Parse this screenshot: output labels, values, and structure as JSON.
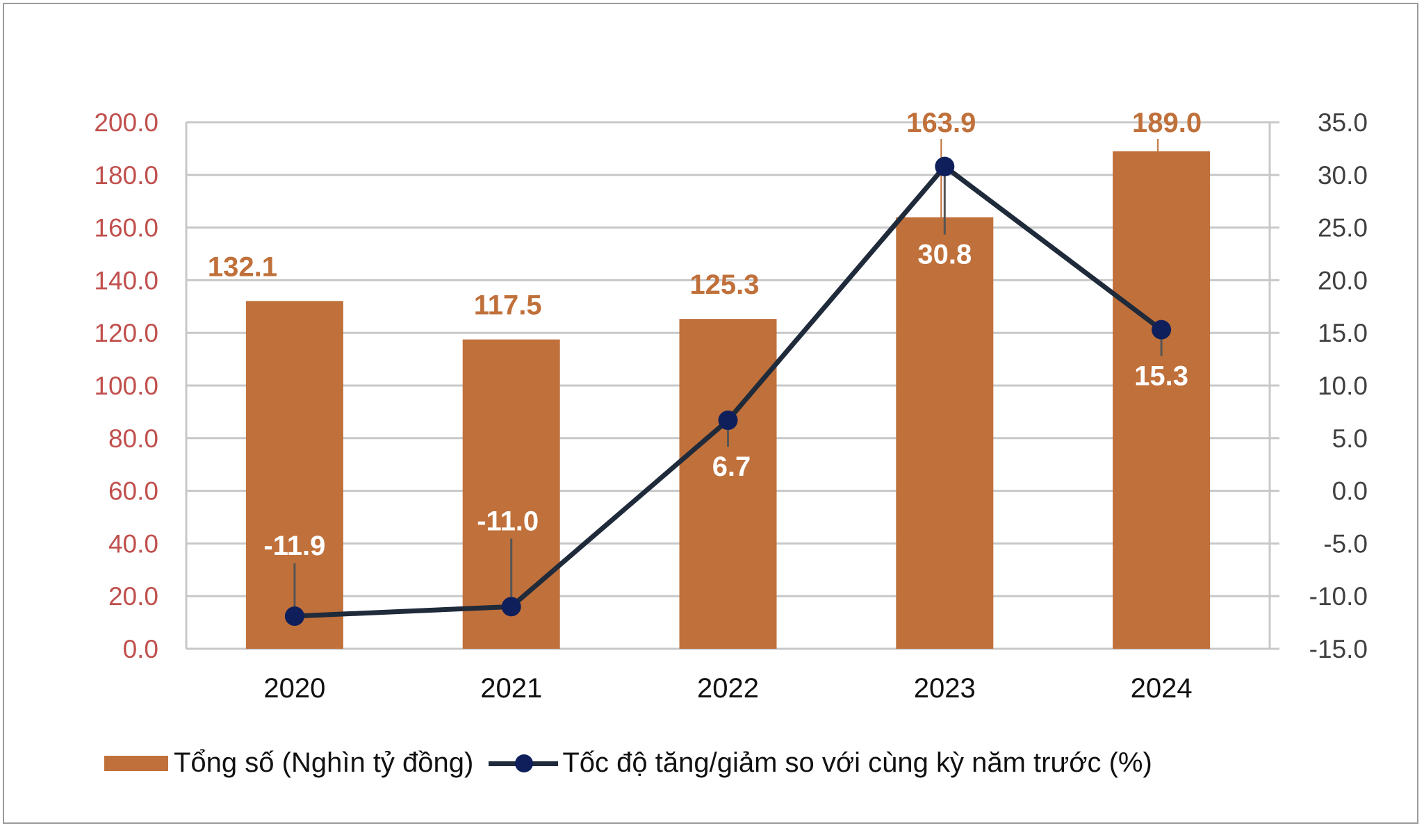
{
  "chart_data": {
    "type": "bar+line",
    "categories": [
      "2020",
      "2021",
      "2022",
      "2023",
      "2024"
    ],
    "series": [
      {
        "name": "Tổng số (Nghìn tỷ đồng)",
        "type": "bar",
        "axis": "left",
        "values": [
          132.1,
          117.5,
          125.3,
          163.9,
          189.0
        ],
        "labels": [
          "132.1",
          "117.5",
          "125.3",
          "163.9",
          "189.0"
        ],
        "color": "#C0703A"
      },
      {
        "name": "Tốc độ tăng/giảm so với cùng kỳ năm trước (%)",
        "type": "line",
        "axis": "right",
        "values": [
          -11.9,
          -11.0,
          6.7,
          30.8,
          15.3
        ],
        "labels": [
          "-11.9",
          "-11.0",
          "6.7",
          "30.8",
          "15.3"
        ],
        "color": "#1F2A3A",
        "marker_color": "#0F1F5C"
      }
    ],
    "left_axis": {
      "ylim": [
        0,
        200
      ],
      "ticks": [
        "0.0",
        "20.0",
        "40.0",
        "60.0",
        "80.0",
        "100.0",
        "120.0",
        "140.0",
        "160.0",
        "180.0",
        "200.0"
      ],
      "color": "#C0504D"
    },
    "right_axis": {
      "ylim": [
        -15,
        35
      ],
      "ticks": [
        "-15.0",
        "-10.0",
        "-5.0",
        "0.0",
        "5.0",
        "10.0",
        "15.0",
        "20.0",
        "25.0",
        "30.0",
        "35.0"
      ],
      "color": "#404040"
    },
    "grid": true,
    "legend": "bottom"
  }
}
